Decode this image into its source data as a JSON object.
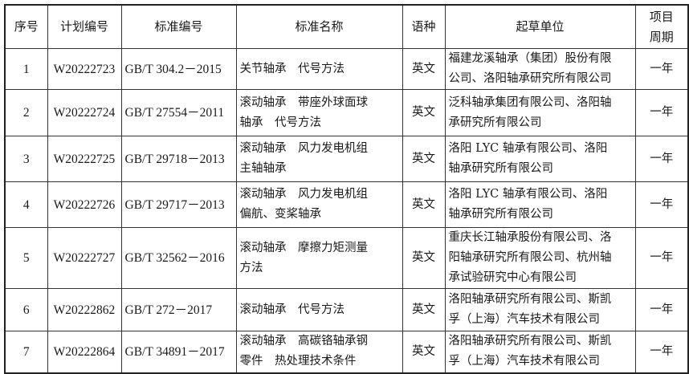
{
  "headers": [
    "序号",
    "计划编号",
    "标准编号",
    "标准名称",
    "语种",
    "起草单位",
    [
      "项目",
      "周期"
    ]
  ],
  "rows": [
    {
      "no": "1",
      "plan": "W20222723",
      "std": "GB/T 304.2－2015",
      "name": [
        "关节轴承　代号方法"
      ],
      "lang": "英文",
      "org": [
        "福建龙溪轴承（集团）股份有限",
        "公司、洛阳轴承研究所有限公司"
      ],
      "period": "一年"
    },
    {
      "no": "2",
      "plan": "W20222724",
      "std": "GB/T 27554－2011",
      "name": [
        "滚动轴承　带座外球面球",
        "轴承　代号方法"
      ],
      "lang": "英文",
      "org": [
        "泛科轴承集团有限公司、洛阳轴",
        "承研究所有限公司"
      ],
      "period": "一年"
    },
    {
      "no": "3",
      "plan": "W20222725",
      "std": "GB/T 29718－2013",
      "name": [
        "滚动轴承　风力发电机组",
        "主轴轴承"
      ],
      "lang": "英文",
      "org": [
        "洛阳 LYC 轴承有限公司、洛阳",
        "轴承研究所有限公司"
      ],
      "period": "一年"
    },
    {
      "no": "4",
      "plan": "W20222726",
      "std": "GB/T 29717－2013",
      "name": [
        "滚动轴承　风力发电机组",
        "偏航、变桨轴承"
      ],
      "lang": "英文",
      "org": [
        "洛阳 LYC 轴承有限公司、洛阳",
        "轴承研究所有限公司"
      ],
      "period": "一年"
    },
    {
      "no": "5",
      "plan": "W20222727",
      "std": "GB/T 32562－2016",
      "name": [
        "滚动轴承　摩擦力矩测量",
        "方法"
      ],
      "lang": "英文",
      "org": [
        "重庆长江轴承股份有限公司、洛",
        "阳轴承研究所有限公司、杭州轴",
        "承试验研究中心有限公司"
      ],
      "period": "一年"
    },
    {
      "no": "6",
      "plan": "W20222862",
      "std": "GB/T 272－2017",
      "name": [
        "滚动轴承　代号方法"
      ],
      "lang": "英文",
      "org": [
        "洛阳轴承研究所有限公司、斯凯",
        "孚（上海）汽车技术有限公司"
      ],
      "period": "一年"
    },
    {
      "no": "7",
      "plan": "W20222864",
      "std": "GB/T 34891－2017",
      "name": [
        "滚动轴承　高碳铬轴承钢",
        "零件　热处理技术条件"
      ],
      "lang": "英文",
      "org": [
        "洛阳轴承研究所有限公司、斯凯",
        "孚（上海）汽车技术有限公司"
      ],
      "period": "一年"
    }
  ]
}
